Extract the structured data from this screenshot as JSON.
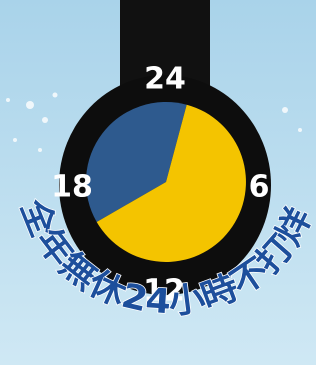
{
  "clock": {
    "labels": {
      "top": "24",
      "right": "6",
      "bottom": "12",
      "left": "18"
    }
  },
  "slogan": "全年無休24小時不打烊"
}
